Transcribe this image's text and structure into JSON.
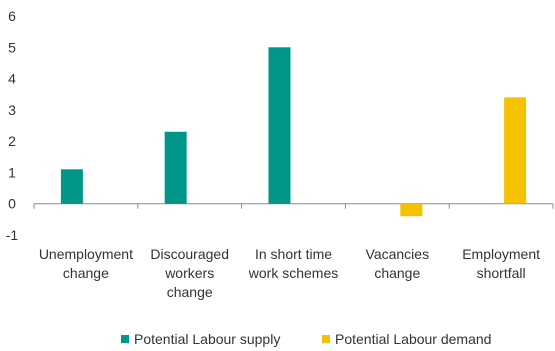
{
  "chart_data": {
    "type": "bar",
    "categories": [
      [
        "Unemployment",
        "change"
      ],
      [
        "Discouraged",
        "workers",
        "change"
      ],
      [
        "In short time",
        "work schemes"
      ],
      [
        "Vacancies",
        "change"
      ],
      [
        "Employment",
        "shortfall"
      ]
    ],
    "series": [
      {
        "name": "Potential Labour supply",
        "color": "#00968a",
        "values": [
          1.1,
          2.3,
          5.0,
          null,
          null
        ]
      },
      {
        "name": "Potential Labour demand",
        "color": "#f5c200",
        "values": [
          null,
          null,
          null,
          -0.4,
          3.4
        ]
      }
    ],
    "ylim": [
      -1,
      6
    ],
    "yticks": [
      -1,
      0,
      1,
      2,
      3,
      4,
      5,
      6
    ],
    "legend_position": "bottom",
    "grid": false
  }
}
